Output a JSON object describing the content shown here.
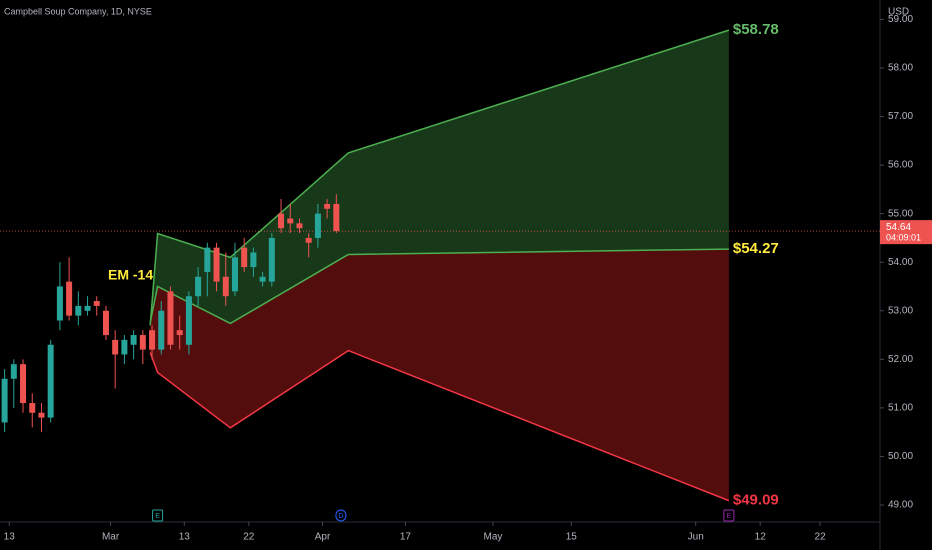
{
  "chart_data": {
    "type": "candlestick",
    "title": "Campbell Soup Company, 1D, NYSE",
    "currency": "USD",
    "annotation": "EM -14",
    "last_price": {
      "value": 54.64,
      "label": "54.64"
    },
    "countdown": "04:09:01",
    "up_color": "#26a69a",
    "down_color": "#ef5350",
    "candles": {
      "open": [
        50.7,
        51.6,
        51.9,
        51.1,
        50.9,
        50.8,
        52.8,
        53.6,
        52.9,
        53.0,
        53.2,
        53.0,
        52.4,
        52.1,
        52.3,
        52.5,
        52.6,
        52.2,
        53.4,
        52.6,
        52.3,
        53.3,
        53.8,
        54.3,
        53.7,
        53.4,
        54.3,
        53.9,
        53.6,
        53.6,
        55.0,
        54.9,
        54.8,
        54.5,
        54.5,
        55.2,
        55.2
      ],
      "high": [
        51.8,
        52.0,
        52.0,
        51.3,
        51.1,
        52.4,
        54.0,
        54.1,
        53.4,
        53.3,
        53.3,
        53.1,
        52.6,
        52.5,
        52.6,
        52.6,
        52.7,
        53.2,
        53.5,
        52.9,
        53.4,
        53.9,
        54.4,
        54.4,
        54.2,
        54.4,
        54.5,
        54.3,
        53.8,
        54.6,
        55.3,
        55.2,
        54.9,
        54.6,
        55.2,
        55.3,
        55.4
      ],
      "low": [
        50.5,
        51.0,
        50.9,
        50.6,
        50.5,
        50.7,
        52.6,
        52.8,
        52.7,
        52.9,
        52.9,
        52.4,
        51.4,
        51.9,
        52.0,
        51.9,
        52.0,
        52.1,
        52.2,
        52.2,
        52.1,
        53.1,
        53.3,
        53.4,
        53.1,
        53.3,
        53.8,
        53.7,
        53.5,
        53.5,
        54.6,
        54.6,
        54.6,
        54.1,
        54.3,
        54.9,
        54.6
      ],
      "close": [
        51.6,
        51.9,
        51.1,
        50.9,
        50.8,
        52.3,
        53.5,
        52.9,
        53.1,
        53.1,
        53.1,
        52.5,
        52.1,
        52.4,
        52.5,
        52.2,
        52.2,
        53.0,
        52.3,
        52.5,
        53.3,
        53.7,
        54.3,
        53.6,
        53.3,
        54.1,
        53.9,
        54.2,
        53.7,
        54.5,
        54.7,
        54.8,
        54.7,
        54.4,
        55.0,
        55.1,
        54.64
      ]
    },
    "band": {
      "x": [
        15.8,
        16.6,
        24.5,
        37.3,
        78.6
      ],
      "series": [
        {
          "color": "#4caf50",
          "values": [
            52.7,
            54.59,
            54.1,
            56.25,
            58.78
          ],
          "value_labels": [
            null,
            null,
            null,
            null,
            "$58.78"
          ],
          "label_color": "#66bb6a"
        },
        {
          "color": "#4caf50",
          "values": [
            52.76,
            53.5,
            52.74,
            54.16,
            54.27
          ],
          "value_labels": [
            null,
            null,
            null,
            null,
            "$54.27"
          ],
          "label_color": "#ffeb3b"
        },
        {
          "color": "#f23645",
          "values": [
            52.14,
            51.73,
            50.59,
            52.18,
            49.09
          ],
          "value_labels": [
            null,
            null,
            null,
            null,
            "$49.09"
          ],
          "label_color": "#f23645"
        }
      ]
    },
    "ylim": [
      48.65,
      59.4
    ],
    "yticks": [
      {
        "value": 49,
        "label": "49.00"
      },
      {
        "value": 50,
        "label": "50.00"
      },
      {
        "value": 51,
        "label": "51.00"
      },
      {
        "value": 52,
        "label": "52.00"
      },
      {
        "value": 53,
        "label": "53.00"
      },
      {
        "value": 54,
        "label": "54.00"
      },
      {
        "value": 55,
        "label": "55.00"
      },
      {
        "value": 56,
        "label": "56.00"
      },
      {
        "value": 57,
        "label": "57.00"
      },
      {
        "value": 58,
        "label": "58.00"
      },
      {
        "value": 59,
        "label": "59.00"
      }
    ],
    "xlim": [
      -0.5,
      95
    ],
    "xticks": [
      {
        "value": 0.5,
        "label": "13"
      },
      {
        "value": 11.5,
        "label": "Mar"
      },
      {
        "value": 19.5,
        "label": "13"
      },
      {
        "value": 26.5,
        "label": "22"
      },
      {
        "value": 34.5,
        "label": "Apr"
      },
      {
        "value": 43.5,
        "label": "17"
      },
      {
        "value": 53,
        "label": "May"
      },
      {
        "value": 61.5,
        "label": "15"
      },
      {
        "value": 75,
        "label": "Jun"
      },
      {
        "value": 82,
        "label": "12"
      },
      {
        "value": 88.5,
        "label": "22"
      }
    ],
    "events": [
      "E",
      "D",
      "E"
    ]
  }
}
